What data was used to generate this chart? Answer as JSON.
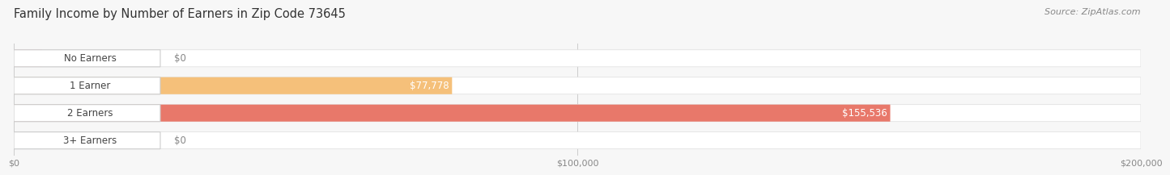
{
  "title": "Family Income by Number of Earners in Zip Code 73645",
  "source": "Source: ZipAtlas.com",
  "categories": [
    "No Earners",
    "1 Earner",
    "2 Earners",
    "3+ Earners"
  ],
  "values": [
    0,
    77778,
    155536,
    0
  ],
  "bar_colors": [
    "#f9a0b4",
    "#f5c07a",
    "#e8786a",
    "#a8bfe0"
  ],
  "xmax": 200000,
  "xticks": [
    0,
    100000,
    200000
  ],
  "xtick_labels": [
    "$0",
    "$100,000",
    "$200,000"
  ],
  "value_labels": [
    "$0",
    "$77,778",
    "$155,536",
    "$0"
  ],
  "bar_height": 0.62,
  "background_color": "#f7f7f7",
  "bar_bg_color": "#e8e8e8",
  "title_fontsize": 10.5,
  "source_fontsize": 8,
  "label_fontsize": 8.5,
  "value_fontsize": 8.5
}
